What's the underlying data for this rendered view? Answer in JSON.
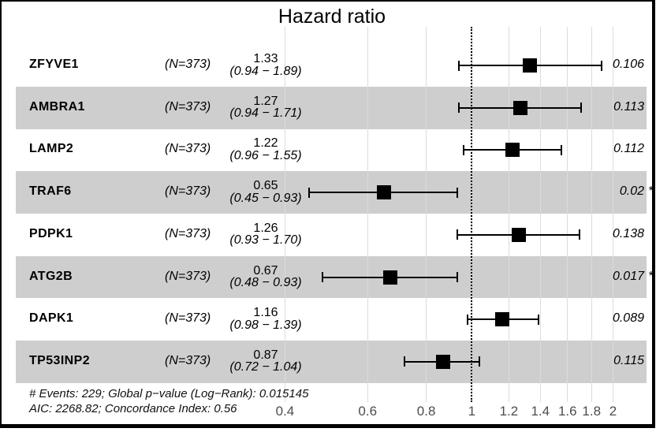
{
  "title": "Hazard ratio",
  "colors": {
    "band": "#cecece",
    "grid": "#dcdcdc",
    "marker": "#000000",
    "tick_text": "#4d4d4d",
    "frame": "#000000"
  },
  "footer": {
    "line1": "# Events: 229; Global p−value (Log−Rank): 0.015145",
    "line2": "AIC: 2268.82; Concordance Index: 0.56"
  },
  "chart_data": {
    "type": "forest",
    "title": "Hazard ratio",
    "x_scale": "log10",
    "x_ticks": [
      0.4,
      0.6,
      0.8,
      1,
      1.2,
      1.4,
      1.6,
      1.8,
      2
    ],
    "x_tick_labels": [
      "0.4",
      "0.6",
      "0.8",
      "1",
      "1.2",
      "1.4",
      "1.6",
      "1.8",
      "2"
    ],
    "xlim": [
      0.4,
      2
    ],
    "reference_line": 1,
    "grid": true,
    "rows": [
      {
        "gene": "ZFYVE1",
        "n_label": "(N=373)",
        "estimate": 1.33,
        "ci_low": 0.94,
        "ci_high": 1.89,
        "estimate_label": "1.33",
        "ci_label": "(0.94 − 1.89)",
        "p_label": "0.106",
        "significant": false,
        "shaded": false
      },
      {
        "gene": "AMBRA1",
        "n_label": "(N=373)",
        "estimate": 1.27,
        "ci_low": 0.94,
        "ci_high": 1.71,
        "estimate_label": "1.27",
        "ci_label": "(0.94 − 1.71)",
        "p_label": "0.113",
        "significant": false,
        "shaded": true
      },
      {
        "gene": "LAMP2",
        "n_label": "(N=373)",
        "estimate": 1.22,
        "ci_low": 0.96,
        "ci_high": 1.55,
        "estimate_label": "1.22",
        "ci_label": "(0.96 − 1.55)",
        "p_label": "0.112",
        "significant": false,
        "shaded": false
      },
      {
        "gene": "TRAF6",
        "n_label": "(N=373)",
        "estimate": 0.65,
        "ci_low": 0.45,
        "ci_high": 0.93,
        "estimate_label": "0.65",
        "ci_label": "(0.45 − 0.93)",
        "p_label": "0.02",
        "significant": true,
        "shaded": true
      },
      {
        "gene": "PDPK1",
        "n_label": "(N=373)",
        "estimate": 1.26,
        "ci_low": 0.93,
        "ci_high": 1.7,
        "estimate_label": "1.26",
        "ci_label": "(0.93 − 1.70)",
        "p_label": "0.138",
        "significant": false,
        "shaded": false
      },
      {
        "gene": "ATG2B",
        "n_label": "(N=373)",
        "estimate": 0.67,
        "ci_low": 0.48,
        "ci_high": 0.93,
        "estimate_label": "0.67",
        "ci_label": "(0.48 − 0.93)",
        "p_label": "0.017",
        "significant": true,
        "shaded": true
      },
      {
        "gene": "DAPK1",
        "n_label": "(N=373)",
        "estimate": 1.16,
        "ci_low": 0.98,
        "ci_high": 1.39,
        "estimate_label": "1.16",
        "ci_label": "(0.98 − 1.39)",
        "p_label": "0.089",
        "significant": false,
        "shaded": false
      },
      {
        "gene": "TP53INP2",
        "n_label": "(N=373)",
        "estimate": 0.87,
        "ci_low": 0.72,
        "ci_high": 1.04,
        "estimate_label": "0.87",
        "ci_label": "(0.72 − 1.04)",
        "p_label": "0.115",
        "significant": false,
        "shaded": true
      }
    ],
    "significance_marker": "*",
    "footnote_lines": [
      "# Events: 229; Global p−value (Log−Rank): 0.015145",
      "AIC: 2268.82; Concordance Index: 0.56"
    ]
  }
}
